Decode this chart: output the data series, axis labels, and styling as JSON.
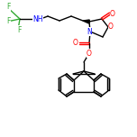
{
  "bg_color": "#ffffff",
  "bond_color": "#000000",
  "atom_colors": {
    "O": "#ff0000",
    "N": "#0000ff",
    "F": "#33aa33",
    "C": "#000000"
  },
  "figsize": [
    1.52,
    1.52
  ],
  "dpi": 100
}
